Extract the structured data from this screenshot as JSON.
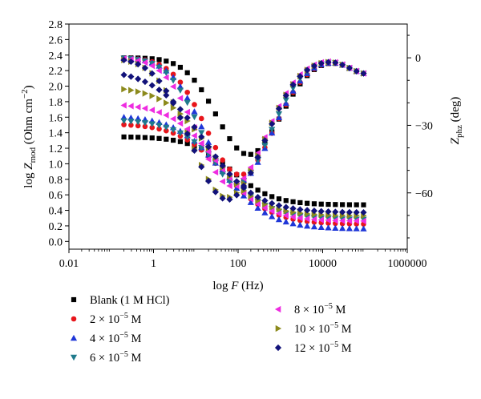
{
  "chart_data": {
    "type": "scatter",
    "title": "",
    "x_axis": {
      "scale": "log",
      "range": [
        0.01,
        1000000
      ],
      "ticks": [
        0.01,
        1,
        100,
        10000,
        1000000
      ],
      "tick_labels": [
        "0.01",
        "1",
        "100",
        "10000",
        "1000000"
      ],
      "label_main": "log ",
      "label_var": "F",
      "label_unit": " (Hz)"
    },
    "y_left_axis": {
      "range": [
        -0.1,
        2.8
      ],
      "ticks": [
        0.0,
        0.2,
        0.4,
        0.6,
        0.8,
        1.0,
        1.2,
        1.4,
        1.6,
        1.8,
        2.0,
        2.2,
        2.4,
        2.6,
        2.8
      ],
      "tick_labels": [
        "0.0",
        "0.2",
        "0.4",
        "0.6",
        "0.8",
        "1.0",
        "1.2",
        "1.4",
        "1.6",
        "1.8",
        "2.0",
        "2.2",
        "2.4",
        "2.6",
        "2.8"
      ],
      "label_main": "log ",
      "label_var": "Z",
      "label_sub": "mod",
      "label_unit": " (Ohm cm",
      "label_sup": "−2",
      "label_close": ")"
    },
    "y_right_axis": {
      "range": [
        -85,
        15
      ],
      "ticks": [
        0,
        -30,
        -60
      ],
      "tick_labels": [
        "0",
        "−30",
        "−60"
      ],
      "label_var": "Z",
      "label_sub": "phz",
      "label_unit": " (deg)"
    },
    "grid": false,
    "legend_position": "bottom",
    "series": [
      {
        "name": "Blank (1 M HCl)",
        "label_parts": [
          "Blank (1 M HCl)",
          "",
          ""
        ],
        "marker": "square",
        "color": "#000000",
        "mod_low": 1.35,
        "mod_high": 0.47,
        "mod_mid_log": 1.85,
        "mod_width": 0.48,
        "phz_depth": -43,
        "phz_center_log": 2.25,
        "phz_width": 0.75,
        "phz_hf_rise": 3.1
      },
      {
        "name": "2 × 10−5 M",
        "label_parts": [
          "2 × 10",
          "−5",
          " M"
        ],
        "marker": "circle",
        "color": "#e8151b",
        "mod_low": 1.52,
        "mod_high": 0.22,
        "mod_mid_log": 1.7,
        "mod_width": 0.55,
        "phz_depth": -52,
        "phz_center_log": 2.05,
        "phz_width": 0.8,
        "phz_hf_rise": 3.05
      },
      {
        "name": "4 × 10−5 M",
        "label_parts": [
          "4 × 10",
          "−5",
          " M"
        ],
        "marker": "triangle-up",
        "color": "#1e36d8",
        "mod_low": 1.62,
        "mod_high": 0.16,
        "mod_mid_log": 1.65,
        "mod_width": 0.55,
        "phz_depth": -55,
        "phz_center_log": 2.0,
        "phz_width": 0.8,
        "phz_hf_rise": 3.0
      },
      {
        "name": "6 × 10−5 M",
        "label_parts": [
          "6 × 10",
          "−5",
          " M"
        ],
        "marker": "triangle-down",
        "color": "#1f7a8c",
        "mod_low": 1.57,
        "mod_high": 0.28,
        "mod_mid_log": 1.65,
        "mod_width": 0.55,
        "phz_depth": -56,
        "phz_center_log": 1.95,
        "phz_width": 0.8,
        "phz_hf_rise": 2.95
      },
      {
        "name": "8 × 10−5 M",
        "label_parts": [
          "8 × 10",
          "−5",
          " M"
        ],
        "marker": "triangle-left",
        "color": "#ee2ce0",
        "mod_low": 1.78,
        "mod_high": 0.26,
        "mod_mid_log": 1.5,
        "mod_width": 0.55,
        "phz_depth": -57,
        "phz_center_log": 1.85,
        "phz_width": 0.8,
        "phz_hf_rise": 2.95
      },
      {
        "name": "10 × 10−5 M",
        "label_parts": [
          "10 × 10",
          "−5",
          " M"
        ],
        "marker": "triangle-right",
        "color": "#8c8a1c",
        "mod_low": 2.0,
        "mod_high": 0.33,
        "mod_mid_log": 1.35,
        "mod_width": 0.55,
        "phz_depth": -62,
        "phz_center_log": 1.75,
        "phz_width": 0.85,
        "phz_hf_rise": 2.9
      },
      {
        "name": "12 × 10−5 M",
        "label_parts": [
          "12 × 10",
          "−5",
          " M"
        ],
        "marker": "diamond",
        "color": "#12127a",
        "mod_low": 2.22,
        "mod_high": 0.37,
        "mod_mid_log": 1.2,
        "mod_width": 0.6,
        "phz_depth": -63,
        "phz_center_log": 1.75,
        "phz_width": 0.85,
        "phz_hf_rise": 2.9
      }
    ],
    "freq_range_log": [
      -0.7,
      5.0
    ],
    "points_per_decade": 6
  }
}
